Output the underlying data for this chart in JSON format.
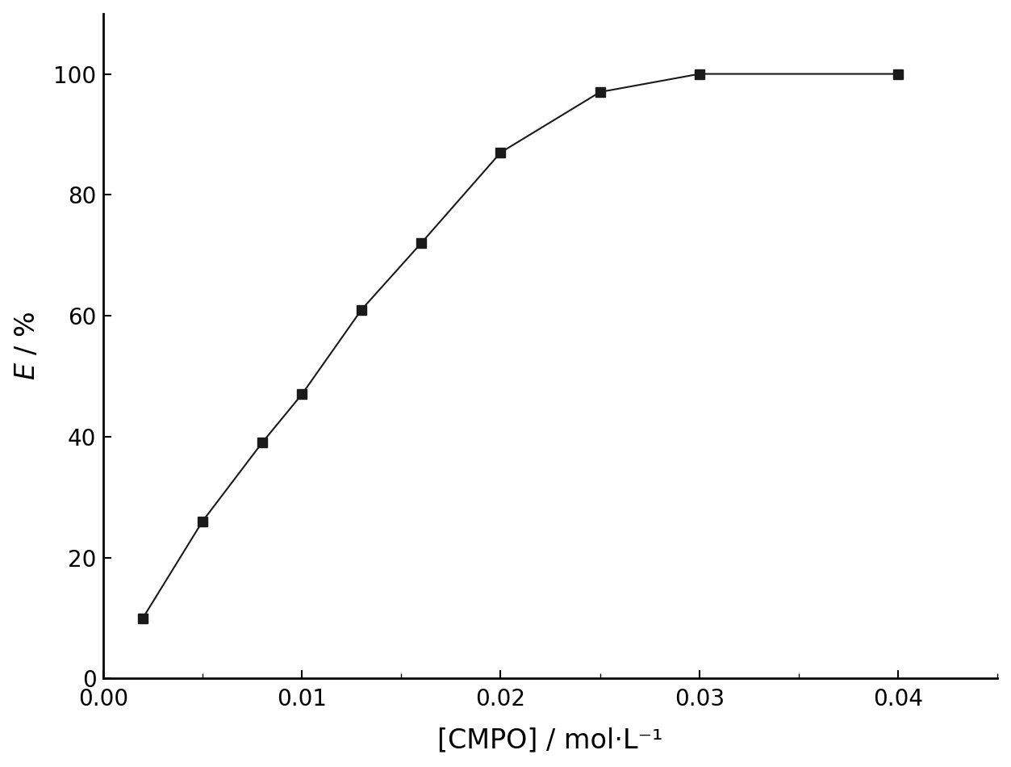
{
  "x": [
    0.002,
    0.005,
    0.008,
    0.01,
    0.013,
    0.016,
    0.02,
    0.025,
    0.03,
    0.04
  ],
  "y": [
    10,
    26,
    39,
    47,
    61,
    72,
    87,
    97,
    100,
    100
  ],
  "xlabel": "[CMPO] / mol·L⁻¹",
  "ylabel_italic": "E",
  "ylabel_rest": " / %",
  "xlim": [
    0.0,
    0.045
  ],
  "ylim": [
    0,
    110
  ],
  "yticks": [
    0,
    20,
    40,
    60,
    80,
    100
  ],
  "xticks": [
    0.0,
    0.01,
    0.02,
    0.03,
    0.04
  ],
  "marker": "s",
  "marker_color": "#1a1a1a",
  "line_color": "#1a1a1a",
  "marker_size": 9,
  "line_width": 1.5,
  "background_color": "#ffffff",
  "xlabel_fontsize": 24,
  "ylabel_fontsize": 24,
  "tick_fontsize": 20
}
